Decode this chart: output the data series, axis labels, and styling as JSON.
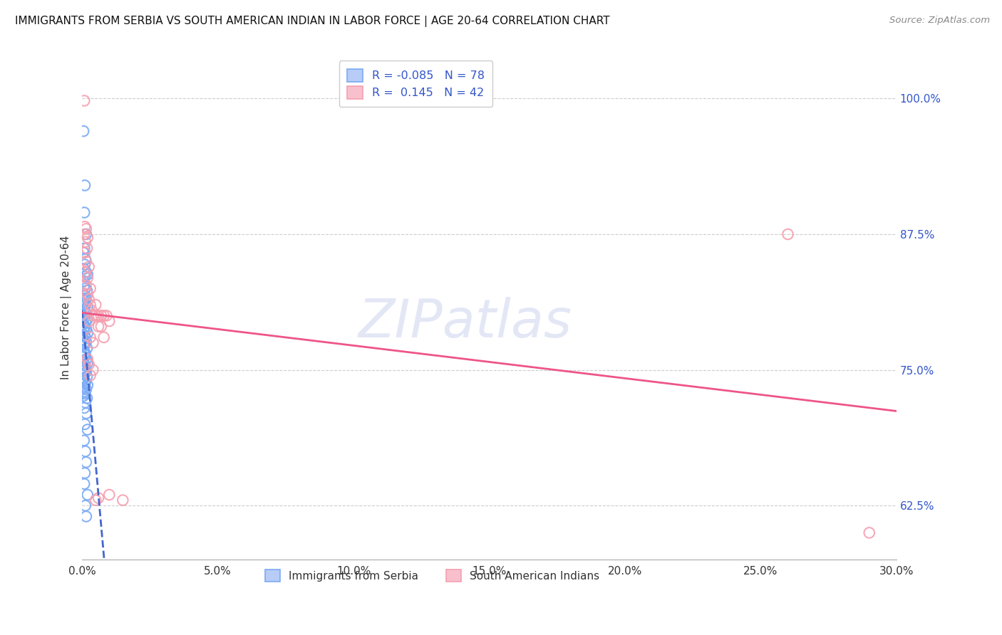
{
  "title": "IMMIGRANTS FROM SERBIA VS SOUTH AMERICAN INDIAN IN LABOR FORCE | AGE 20-64 CORRELATION CHART",
  "source": "Source: ZipAtlas.com",
  "ylabel": "In Labor Force | Age 20-64",
  "xlim": [
    0.0,
    0.3
  ],
  "ylim": [
    0.575,
    1.04
  ],
  "yticks_right": [
    0.625,
    0.75,
    0.875,
    1.0
  ],
  "ytick_labels_right": [
    "62.5%",
    "75.0%",
    "87.5%",
    "100.0%"
  ],
  "xticks": [
    0.0,
    0.05,
    0.1,
    0.15,
    0.2,
    0.25,
    0.3
  ],
  "xtick_labels": [
    "0.0%",
    "5.0%",
    "10.0%",
    "15.0%",
    "20.0%",
    "25.0%",
    "30.0%"
  ],
  "serbia_R": -0.085,
  "serbia_N": 78,
  "south_american_R": 0.145,
  "south_american_N": 42,
  "watermark": "ZIPatlas",
  "serbia_points": [
    [
      0.0005,
      0.97
    ],
    [
      0.001,
      0.92
    ],
    [
      0.0008,
      0.895
    ],
    [
      0.0015,
      0.875
    ],
    [
      0.0008,
      0.862
    ],
    [
      0.0005,
      0.858
    ],
    [
      0.0012,
      0.852
    ],
    [
      0.001,
      0.847
    ],
    [
      0.0007,
      0.843
    ],
    [
      0.0015,
      0.84
    ],
    [
      0.002,
      0.838
    ],
    [
      0.001,
      0.836
    ],
    [
      0.0005,
      0.832
    ],
    [
      0.0008,
      0.828
    ],
    [
      0.0012,
      0.825
    ],
    [
      0.0018,
      0.823
    ],
    [
      0.0005,
      0.82
    ],
    [
      0.001,
      0.818
    ],
    [
      0.0015,
      0.816
    ],
    [
      0.0008,
      0.814
    ],
    [
      0.0005,
      0.812
    ],
    [
      0.0012,
      0.81
    ],
    [
      0.002,
      0.808
    ],
    [
      0.0007,
      0.806
    ],
    [
      0.001,
      0.804
    ],
    [
      0.0015,
      0.802
    ],
    [
      0.0005,
      0.8
    ],
    [
      0.0008,
      0.798
    ],
    [
      0.0018,
      0.796
    ],
    [
      0.0012,
      0.794
    ],
    [
      0.0005,
      0.792
    ],
    [
      0.001,
      0.79
    ],
    [
      0.0015,
      0.788
    ],
    [
      0.0007,
      0.786
    ],
    [
      0.002,
      0.784
    ],
    [
      0.0008,
      0.782
    ],
    [
      0.0012,
      0.78
    ],
    [
      0.0005,
      0.778
    ],
    [
      0.0015,
      0.776
    ],
    [
      0.001,
      0.774
    ],
    [
      0.0007,
      0.772
    ],
    [
      0.0018,
      0.77
    ],
    [
      0.0005,
      0.768
    ],
    [
      0.001,
      0.766
    ],
    [
      0.0012,
      0.764
    ],
    [
      0.0008,
      0.762
    ],
    [
      0.0015,
      0.76
    ],
    [
      0.0005,
      0.758
    ],
    [
      0.002,
      0.756
    ],
    [
      0.001,
      0.754
    ],
    [
      0.0007,
      0.752
    ],
    [
      0.0012,
      0.75
    ],
    [
      0.0015,
      0.748
    ],
    [
      0.0008,
      0.746
    ],
    [
      0.0018,
      0.744
    ],
    [
      0.0005,
      0.742
    ],
    [
      0.001,
      0.74
    ],
    [
      0.0012,
      0.738
    ],
    [
      0.002,
      0.736
    ],
    [
      0.0007,
      0.734
    ],
    [
      0.0015,
      0.732
    ],
    [
      0.0008,
      0.73
    ],
    [
      0.001,
      0.728
    ],
    [
      0.0005,
      0.726
    ],
    [
      0.0018,
      0.724
    ],
    [
      0.0012,
      0.72
    ],
    [
      0.0008,
      0.715
    ],
    [
      0.0015,
      0.71
    ],
    [
      0.001,
      0.7
    ],
    [
      0.002,
      0.695
    ],
    [
      0.0007,
      0.685
    ],
    [
      0.0012,
      0.675
    ],
    [
      0.0015,
      0.665
    ],
    [
      0.001,
      0.655
    ],
    [
      0.0008,
      0.645
    ],
    [
      0.002,
      0.635
    ],
    [
      0.0012,
      0.625
    ],
    [
      0.0015,
      0.615
    ]
  ],
  "south_american_points": [
    [
      0.0008,
      0.998
    ],
    [
      0.001,
      0.882
    ],
    [
      0.0015,
      0.88
    ],
    [
      0.0008,
      0.875
    ],
    [
      0.002,
      0.872
    ],
    [
      0.0012,
      0.868
    ],
    [
      0.0018,
      0.862
    ],
    [
      0.001,
      0.858
    ],
    [
      0.0015,
      0.85
    ],
    [
      0.0025,
      0.845
    ],
    [
      0.001,
      0.84
    ],
    [
      0.002,
      0.835
    ],
    [
      0.0015,
      0.828
    ],
    [
      0.003,
      0.825
    ],
    [
      0.002,
      0.82
    ],
    [
      0.0025,
      0.815
    ],
    [
      0.003,
      0.81
    ],
    [
      0.0035,
      0.805
    ],
    [
      0.004,
      0.8
    ],
    [
      0.005,
      0.8
    ],
    [
      0.006,
      0.8
    ],
    [
      0.0025,
      0.795
    ],
    [
      0.006,
      0.79
    ],
    [
      0.007,
      0.8
    ],
    [
      0.008,
      0.8
    ],
    [
      0.005,
      0.81
    ],
    [
      0.009,
      0.8
    ],
    [
      0.003,
      0.78
    ],
    [
      0.004,
      0.775
    ],
    [
      0.007,
      0.79
    ],
    [
      0.008,
      0.78
    ],
    [
      0.01,
      0.795
    ],
    [
      0.002,
      0.76
    ],
    [
      0.0025,
      0.755
    ],
    [
      0.004,
      0.75
    ],
    [
      0.003,
      0.745
    ],
    [
      0.005,
      0.63
    ],
    [
      0.006,
      0.632
    ],
    [
      0.01,
      0.635
    ],
    [
      0.015,
      0.63
    ],
    [
      0.26,
      0.875
    ],
    [
      0.29,
      0.6
    ]
  ],
  "marker_size": 110,
  "serbia_color": "#7aaaf5",
  "south_american_color": "#f5a0b0",
  "grid_color": "#cccccc",
  "background_color": "#ffffff",
  "right_axis_color": "#3355cc",
  "trend_line_serbia_color": "#4466cc",
  "trend_line_south_color": "#ee5588"
}
